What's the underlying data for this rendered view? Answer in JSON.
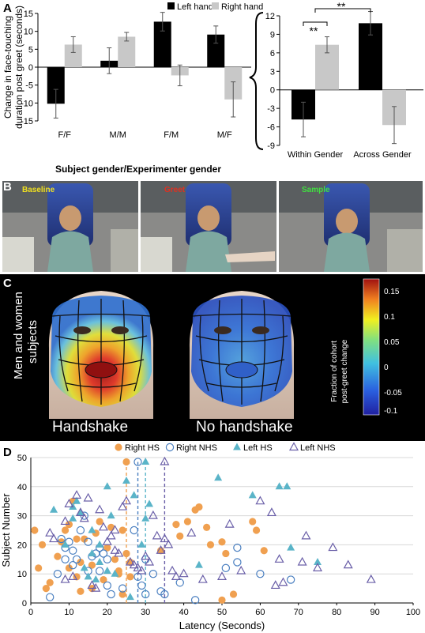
{
  "panels": {
    "a": "A",
    "b": "B",
    "c": "C",
    "d": "D"
  },
  "chart_data": [
    {
      "type": "bar",
      "ylabel": "Change in face-touching duration post greet (seconds)",
      "xlabel": "Subject gender/Experimenter gender",
      "categories": [
        "F/F",
        "M/M",
        "F/M",
        "M/F"
      ],
      "ylim": [
        -15,
        15
      ],
      "yticks": [
        -15,
        -10,
        -5,
        0,
        5,
        10,
        15
      ],
      "series": [
        {
          "name": "Left hand",
          "color": "#000000",
          "values": [
            -10.2,
            1.8,
            12.7,
            9.1
          ],
          "err": [
            4.0,
            3.6,
            2.6,
            2.4
          ]
        },
        {
          "name": "Right hand",
          "color": "#c8c8c8",
          "values": [
            6.3,
            8.5,
            -2.3,
            -9.0
          ],
          "err": [
            2.2,
            1.2,
            2.9,
            4.9
          ]
        }
      ]
    },
    {
      "type": "bar",
      "categories": [
        "Within Gender",
        "Across Gender"
      ],
      "ylim": [
        -9,
        12
      ],
      "yticks": [
        -9,
        -6,
        -3,
        0,
        3,
        6,
        9,
        12
      ],
      "series": [
        {
          "name": "Left hand",
          "color": "#000000",
          "values": [
            -4.8,
            10.8
          ],
          "err": [
            2.8,
            1.9
          ]
        },
        {
          "name": "Right hand",
          "color": "#c8c8c8",
          "values": [
            7.3,
            -5.7
          ],
          "err": [
            1.3,
            3.0
          ]
        }
      ],
      "annotations": [
        "**",
        "**"
      ]
    },
    {
      "type": "scatter",
      "xlabel": "Latency (Seconds)",
      "ylabel": "Subject Number",
      "xlim": [
        0,
        100
      ],
      "ylim": [
        0,
        50
      ],
      "xticks": [
        0,
        10,
        20,
        30,
        40,
        50,
        60,
        70,
        80,
        90,
        100
      ],
      "yticks": [
        0,
        10,
        20,
        30,
        40,
        50
      ],
      "series": [
        {
          "name": "Right HS",
          "marker": "filled-circle",
          "color": "#f0a050",
          "points": [
            [
              1,
              25
            ],
            [
              2,
              12
            ],
            [
              3,
              20
            ],
            [
              4,
              5
            ],
            [
              5,
              7
            ],
            [
              7,
              16
            ],
            [
              8,
              21
            ],
            [
              9,
              25
            ],
            [
              10,
              27
            ],
            [
              10,
              12
            ],
            [
              11,
              35
            ],
            [
              12,
              22
            ],
            [
              12,
              9
            ],
            [
              13,
              4
            ],
            [
              13,
              14
            ],
            [
              14,
              22
            ],
            [
              16,
              5
            ],
            [
              16,
              13
            ],
            [
              17,
              24
            ],
            [
              18,
              28
            ],
            [
              19,
              8
            ],
            [
              20,
              19
            ],
            [
              21,
              26
            ],
            [
              22,
              15
            ],
            [
              23,
              10
            ],
            [
              23,
              11
            ],
            [
              24,
              25
            ],
            [
              24,
              3
            ],
            [
              25,
              17
            ],
            [
              26,
              9
            ],
            [
              26,
              14
            ],
            [
              34,
              18
            ],
            [
              38,
              27
            ],
            [
              39,
              23
            ],
            [
              41,
              28
            ],
            [
              43,
              32
            ],
            [
              44,
              33
            ],
            [
              46,
              26
            ],
            [
              47,
              20
            ],
            [
              50,
              21
            ],
            [
              50,
              1
            ],
            [
              51,
              17
            ],
            [
              53,
              3
            ],
            [
              58,
              28
            ],
            [
              59,
              25
            ],
            [
              61,
              18
            ]
          ]
        },
        {
          "name": "Right NHS",
          "marker": "open-circle",
          "color": "#4a7fc0",
          "points": [
            [
              5,
              2
            ],
            [
              7,
              10
            ],
            [
              8,
              22
            ],
            [
              9,
              19
            ],
            [
              9,
              15
            ],
            [
              10,
              21
            ],
            [
              11,
              18
            ],
            [
              11,
              13
            ],
            [
              12,
              15
            ],
            [
              13,
              25
            ],
            [
              14,
              30
            ],
            [
              15,
              21
            ],
            [
              15,
              11
            ],
            [
              16,
              16
            ],
            [
              17,
              17
            ],
            [
              18,
              11
            ],
            [
              18,
              19
            ],
            [
              19,
              17
            ],
            [
              20,
              15
            ],
            [
              20,
              6
            ],
            [
              21,
              3
            ],
            [
              24,
              5
            ],
            [
              27,
              25
            ],
            [
              28,
              9
            ],
            [
              29,
              6
            ],
            [
              30,
              3
            ],
            [
              30,
              15
            ],
            [
              32,
              10
            ],
            [
              34,
              4
            ],
            [
              35,
              3
            ],
            [
              39,
              7
            ],
            [
              43,
              1
            ],
            [
              51,
              12
            ],
            [
              54,
              14
            ],
            [
              54,
              19
            ],
            [
              60,
              10
            ],
            [
              68,
              8
            ]
          ]
        },
        {
          "name": "Left HS",
          "marker": "filled-triangle",
          "color": "#5ab4c8",
          "points": [
            [
              6,
              32
            ],
            [
              9,
              20
            ],
            [
              11,
              33
            ],
            [
              11,
              29
            ],
            [
              12,
              35
            ],
            [
              13,
              31
            ],
            [
              14,
              12
            ],
            [
              15,
              9
            ],
            [
              16,
              25
            ],
            [
              16,
              17
            ],
            [
              17,
              8
            ],
            [
              18,
              20
            ],
            [
              18,
              14
            ],
            [
              20,
              40
            ],
            [
              20,
              11
            ],
            [
              21,
              30
            ],
            [
              22,
              10
            ],
            [
              25,
              42
            ],
            [
              26,
              2
            ],
            [
              27,
              37
            ],
            [
              29,
              20
            ],
            [
              30,
              29
            ],
            [
              31,
              34
            ],
            [
              44,
              13
            ],
            [
              49,
              43
            ],
            [
              58,
              37
            ],
            [
              65,
              40
            ],
            [
              67,
              40
            ],
            [
              68,
              19
            ],
            [
              75,
              14
            ]
          ]
        },
        {
          "name": "Left NHS",
          "marker": "open-triangle",
          "color": "#6a5fa8",
          "points": [
            [
              5,
              24
            ],
            [
              6,
              22
            ],
            [
              9,
              28
            ],
            [
              9,
              8
            ],
            [
              10,
              34
            ],
            [
              11,
              9
            ],
            [
              12,
              37
            ],
            [
              13,
              31
            ],
            [
              14,
              29
            ],
            [
              15,
              36
            ],
            [
              16,
              6
            ],
            [
              17,
              5
            ],
            [
              18,
              32
            ],
            [
              19,
              26
            ],
            [
              20,
              21
            ],
            [
              21,
              23
            ],
            [
              22,
              25
            ],
            [
              22,
              18
            ],
            [
              23,
              17
            ],
            [
              24,
              33
            ],
            [
              25,
              35
            ],
            [
              26,
              14
            ],
            [
              27,
              13
            ],
            [
              28,
              12
            ],
            [
              29,
              11
            ],
            [
              30,
              16
            ],
            [
              31,
              14
            ],
            [
              32,
              30
            ],
            [
              33,
              23
            ],
            [
              34,
              18
            ],
            [
              35,
              22
            ],
            [
              36,
              20
            ],
            [
              37,
              11
            ],
            [
              38,
              9
            ],
            [
              40,
              10
            ],
            [
              42,
              24
            ],
            [
              45,
              8
            ],
            [
              50,
              9
            ],
            [
              52,
              27
            ],
            [
              55,
              11
            ],
            [
              60,
              35
            ],
            [
              63,
              31
            ],
            [
              65,
              15
            ],
            [
              66,
              7
            ],
            [
              71,
              14
            ],
            [
              72,
              23
            ],
            [
              75,
              12
            ],
            [
              79,
              19
            ],
            [
              83,
              13
            ],
            [
              89,
              8
            ],
            [
              64,
              6
            ]
          ]
        }
      ],
      "reference_lines": [
        {
          "x": 25,
          "color": "#f0a050"
        },
        {
          "x": 28,
          "color": "#4a7fc0"
        },
        {
          "x": 30,
          "color": "#5ab4c8"
        },
        {
          "x": 35,
          "color": "#6a5fa8"
        }
      ]
    }
  ],
  "photos": [
    {
      "label": "Baseline",
      "color": "#f0e020"
    },
    {
      "label": "Greet",
      "color": "#e03020"
    },
    {
      "label": "Sample",
      "color": "#40e040"
    }
  ],
  "faces": {
    "left_caption": "Handshake",
    "right_caption": "No handshake",
    "side_caption_1": "Men and women",
    "side_caption_2": "subjects",
    "colorbar_title_1": "Fraction of cohort",
    "colorbar_title_2": "post-greet change",
    "colorbar_ticks": [
      "0.15",
      "0.1",
      "0.05",
      "0",
      "-0.05",
      "-0.1"
    ]
  }
}
